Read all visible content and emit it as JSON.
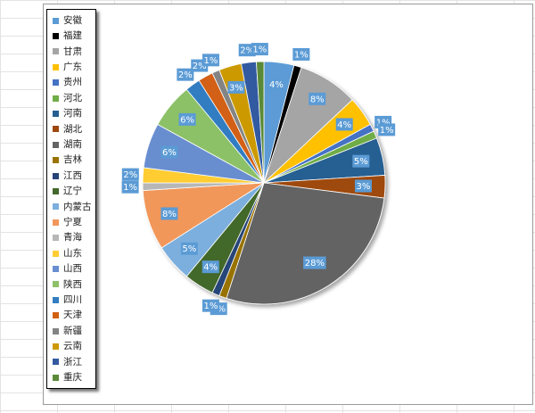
{
  "chart_data": {
    "type": "pie",
    "categories": [
      "安徽",
      "福建",
      "甘肃",
      "广东",
      "贵州",
      "河北",
      "河南",
      "湖北",
      "湖南",
      "吉林",
      "江西",
      "辽宁",
      "内蒙古",
      "宁夏",
      "青海",
      "山东",
      "山西",
      "陕西",
      "四川",
      "天津",
      "新疆",
      "云南",
      "浙江",
      "重庆"
    ],
    "values": [
      4,
      1,
      8,
      4,
      1,
      1,
      5,
      3,
      28,
      1,
      1,
      4,
      5,
      8,
      1,
      2,
      6,
      6,
      2,
      2,
      1,
      3,
      2,
      1
    ],
    "labels": [
      "4%",
      "1%",
      "8%",
      "4%",
      "1%",
      "1%",
      "5%",
      "3%",
      "28%",
      "1%",
      "1%",
      "4%",
      "5%",
      "8%",
      "1%",
      "2%",
      "6%",
      "6%",
      "2%",
      "2%",
      "1%",
      "3%",
      "2%",
      "1%"
    ],
    "colors": [
      "#5b9bd5",
      "#000000",
      "#a5a5a5",
      "#ffc000",
      "#4472c4",
      "#70ad47",
      "#255e91",
      "#9e480e",
      "#636363",
      "#997300",
      "#264478",
      "#43682b",
      "#7cafdd",
      "#f1975a",
      "#b7b7b7",
      "#ffcd33",
      "#698ed0",
      "#8cc168",
      "#327dc2",
      "#d26012",
      "#848484",
      "#cc9a00",
      "#335aa1",
      "#5a8a39"
    ],
    "legend_position": "left",
    "title": ""
  }
}
